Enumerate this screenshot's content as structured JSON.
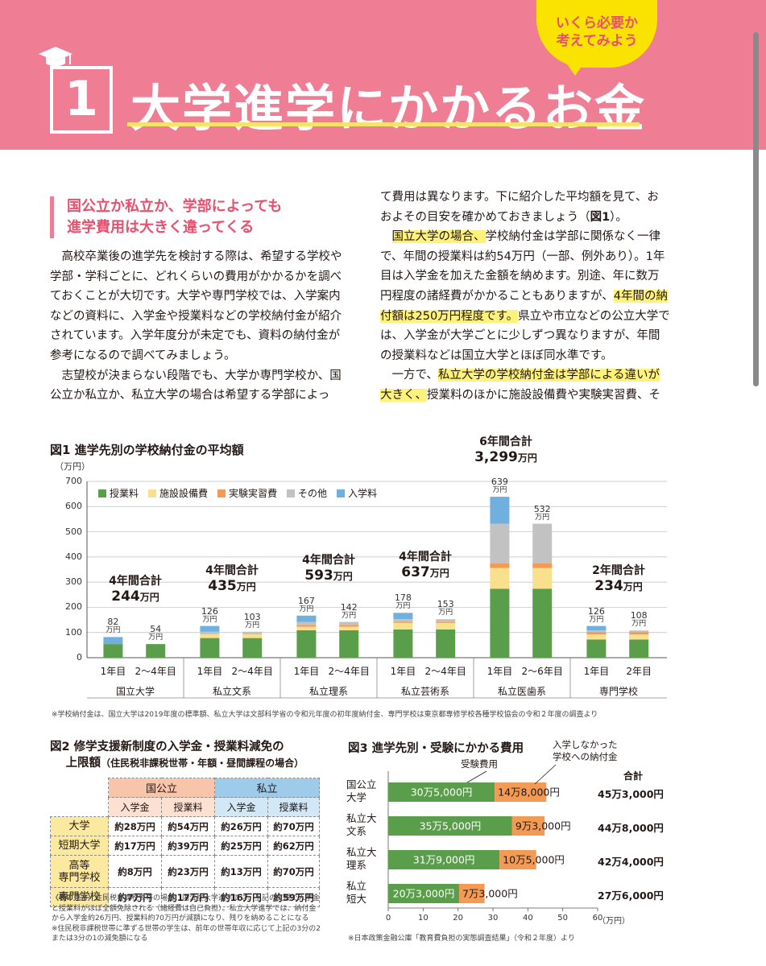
{
  "header": {
    "chapter_number": "1",
    "title": "大学進学にかかるお金",
    "bubble_line1": "いくら必要か",
    "bubble_line2": "考えてみよう",
    "cap_icon": "graduation-cap-icon"
  },
  "subhead": {
    "line1": "国公立か私立か、学部によっても",
    "line2": "進学費用は大きく違ってくる"
  },
  "body_left": [
    "　高校卒業後の進学先を検討する際は、希望する学校や学部・学科ごとに、どれくらいの費用がかかるかを調べておくことが大切です。大学や専門学校では、入学案内などの資料に、入学金や授業料などの学校納付金が紹介されています。入学年度分が未定でも、資料の納付金が参考になるので調べてみましょう。",
    "　志望校が決まらない段階でも、大学か専門学校か、国公立か私立か、私立大学の場合は希望する学部によっ"
  ],
  "body_right": {
    "p1_text": "て費用は異なります。下に紹介した平均額を見て、おおよその目安を確かめておきましょう（",
    "p1_ref": "図1",
    "p1_end": "）。",
    "p2_hl1": "国立大学の場合、",
    "p2_mid": "学校納付金は学部に関係なく一律で、年間の授業料は約54万円（一部、例外あり）。1年目は入学金を加えた金額を納めます。別途、年に数万円程度の諸経費がかかることもありますが、",
    "p2_hl2": "4年間の納付額は250万円程度です。",
    "p2_end": "県立や市立などの公立大学では、入学金が大学ごとに少しずつ異なりますが、年間の授業料などは国立大学とほぼ同水準です。",
    "p3_start": "　一方で、",
    "p3_hl": "私立大学の学校納付金は学部による違いが大きく、",
    "p3_end": "授業料のほかに施設設備費や実験実習費、そ"
  },
  "fig1": {
    "title": "図1 進学先別の学校納付金の平均額",
    "unit": "（万円）",
    "note": "※学校納付金は、国立大学は2019年度の標準額、私立大学は文部科学省の令和元年度の初年度納付金、専門学校は東京都専修学校各種学校協会の令和２年度の調査より",
    "value_unit": "万円",
    "chart_data": {
      "type": "bar",
      "stacked": true,
      "ylim": [
        0,
        700
      ],
      "yticks": [
        0,
        100,
        200,
        300,
        400,
        500,
        600,
        700
      ],
      "legend": [
        "授業料",
        "施設設備費",
        "実験実習費",
        "その他",
        "入学料"
      ],
      "colors": {
        "授業料": "#5a9e4c",
        "施設設備費": "#f8e08c",
        "実験実習費": "#f39a55",
        "その他": "#c2c2c2",
        "入学料": "#6fb0de"
      },
      "groups": [
        {
          "category": "国立大学",
          "total_label": "4年間合計",
          "total_value": "244",
          "bars": [
            {
              "x": "1年目",
              "total": 82,
              "stack": [
                54,
                0,
                0,
                0,
                28
              ]
            },
            {
              "x": "2〜4年目",
              "total": 54,
              "stack": [
                54,
                0,
                0,
                0,
                0
              ]
            }
          ]
        },
        {
          "category": "私立文系",
          "total_label": "4年間合計",
          "total_value": "435",
          "bars": [
            {
              "x": "1年目",
              "total": 126,
              "stack": [
                78,
                15,
                1,
                9,
                23
              ]
            },
            {
              "x": "2〜4年目",
              "total": 103,
              "stack": [
                78,
                15,
                1,
                9,
                0
              ]
            }
          ]
        },
        {
          "category": "私立理系",
          "total_label": "4年間合計",
          "total_value": "593",
          "bars": [
            {
              "x": "1年目",
              "total": 167,
              "stack": [
                109,
                14,
                7,
                12,
                25
              ]
            },
            {
              "x": "2〜4年目",
              "total": 142,
              "stack": [
                109,
                14,
                7,
                12,
                0
              ]
            }
          ]
        },
        {
          "category": "私立芸術系",
          "total_label": "4年間合計",
          "total_value": "637",
          "bars": [
            {
              "x": "1年目",
              "total": 178,
              "stack": [
                112,
                26,
                5,
                10,
                25
              ]
            },
            {
              "x": "2〜4年目",
              "total": 153,
              "stack": [
                112,
                26,
                5,
                10,
                0
              ]
            }
          ]
        },
        {
          "category": "私立医歯系",
          "total_label": "6年間合計",
          "total_value": "3,299",
          "bars": [
            {
              "x": "1年目",
              "total": 639,
              "stack": [
                274,
                82,
                18,
                158,
                107
              ]
            },
            {
              "x": "2〜6年目",
              "total": 532,
              "stack": [
                274,
                82,
                18,
                158,
                0
              ]
            }
          ]
        },
        {
          "category": "専門学校",
          "total_label": "2年間合計",
          "total_value": "234",
          "bars": [
            {
              "x": "1年目",
              "total": 126,
              "stack": [
                72,
                20,
                10,
                6,
                18
              ]
            },
            {
              "x": "2年目",
              "total": 108,
              "stack": [
                72,
                20,
                10,
                6,
                0
              ]
            }
          ]
        }
      ]
    }
  },
  "fig2": {
    "title_line1": "図2 修学支援新制度の入学金・授業料減免の",
    "title_line2": "上限額",
    "title_sub": "（住民税非課税世帯・年額・昼間課程の場合）",
    "col_national": "国公立",
    "col_private": "私立",
    "sub_enroll": "入学金",
    "sub_tuition": "授業料",
    "rows": [
      {
        "label": [
          "大学"
        ],
        "vals": [
          "約28万円",
          "約54万円",
          "約26万円",
          "約70万円"
        ]
      },
      {
        "label": [
          "短期大学"
        ],
        "vals": [
          "約17万円",
          "約39万円",
          "約25万円",
          "約62万円"
        ]
      },
      {
        "label": [
          "高等",
          "専門学校"
        ],
        "vals": [
          "約8万円",
          "約23万円",
          "約13万円",
          "約70万円"
        ]
      },
      {
        "label": [
          "専門学校"
        ],
        "vals": [
          "約7万円",
          "約17万円",
          "約16万円",
          "約59万円"
        ]
      }
    ],
    "note_heading": "〈表の見方〉",
    "note_body": "住民税非課税世帯の場合、国公立大学進学では、上記の支援で入学金と授業料がほぼ全額免除される（諸経費は自己負担）。私立大学進学では、納付金から入学金約26万円、授業料約70万円が減額になり、残りを納めることになる",
    "note2": "※住民税非課税世帯に準ずる世帯の学生は、前年の世帯年収に応じて上記の3分の2または3分の1の減免額になる"
  },
  "fig3": {
    "title": "図3 進学先別・受験にかかる費用",
    "callout_exam": "受験費用",
    "callout_unenrolled_1": "入学しなかった",
    "callout_unenrolled_2": "学校への納付金",
    "total_header": "合計",
    "unit": "（万円）",
    "note": "※日本政策金融公庫「教育費負担の実態調査結果」（令和２年度）より",
    "chart_data": {
      "type": "bar",
      "orientation": "horizontal",
      "stacked": true,
      "xlim": [
        0,
        60
      ],
      "xticks": [
        0,
        10,
        20,
        30,
        40,
        50,
        60
      ],
      "series_colors": [
        "#5a9e4c",
        "#f39a55"
      ],
      "rows": [
        {
          "label": [
            "国公立",
            "大学"
          ],
          "exam": 30.5,
          "exam_label": "30万5,000円",
          "unenrolled": 14.8,
          "unenrolled_label": "14万8,000円",
          "total": "45万3,000円"
        },
        {
          "label": [
            "私立大",
            "文系"
          ],
          "exam": 35.5,
          "exam_label": "35万5,000円",
          "unenrolled": 9.3,
          "unenrolled_label": "9万3,000円",
          "total": "44万8,000円"
        },
        {
          "label": [
            "私立大",
            "理系"
          ],
          "exam": 31.9,
          "exam_label": "31万9,000円",
          "unenrolled": 10.5,
          "unenrolled_label": "10万5,000円",
          "total": "42万4,000円"
        },
        {
          "label": [
            "私立",
            "短大"
          ],
          "exam": 20.3,
          "exam_label": "20万3,000円",
          "unenrolled": 7.3,
          "unenrolled_label": "7万3,000円",
          "total": "27万6,000円"
        }
      ]
    }
  }
}
